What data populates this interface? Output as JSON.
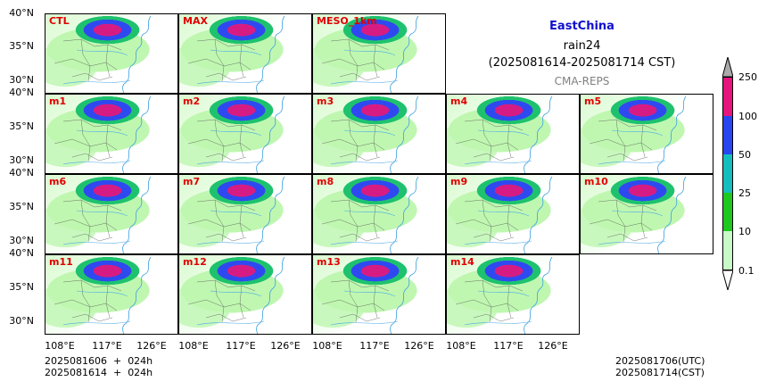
{
  "info": {
    "region": "EastChina",
    "variable": "rain24",
    "period": "(2025081614-2025081714 CST)",
    "model": "CMA-REPS",
    "region_color": "#1010d0",
    "model_color": "#808080"
  },
  "panels": [
    {
      "id": "ctl",
      "label": "CTL"
    },
    {
      "id": "max",
      "label": "MAX"
    },
    {
      "id": "meso",
      "label": "MESO_1km"
    },
    {
      "id": "m1",
      "label": "m1"
    },
    {
      "id": "m2",
      "label": "m2"
    },
    {
      "id": "m3",
      "label": "m3"
    },
    {
      "id": "m4",
      "label": "m4"
    },
    {
      "id": "m5",
      "label": "m5"
    },
    {
      "id": "m6",
      "label": "m6"
    },
    {
      "id": "m7",
      "label": "m7"
    },
    {
      "id": "m8",
      "label": "m8"
    },
    {
      "id": "m9",
      "label": "m9"
    },
    {
      "id": "m10",
      "label": "m10"
    },
    {
      "id": "m11",
      "label": "m11"
    },
    {
      "id": "m12",
      "label": "m12"
    },
    {
      "id": "m13",
      "label": "m13"
    },
    {
      "id": "m14",
      "label": "m14"
    }
  ],
  "lat_ticks": [
    "40°N",
    "35°N",
    "30°N"
  ],
  "lon_ticks": [
    "108°E",
    "117°E",
    "126°E"
  ],
  "colorbar": {
    "levels": [
      "0.1",
      "10",
      "25",
      "50",
      "100",
      "250"
    ],
    "colors": [
      "#c8fac8",
      "#1ec81e",
      "#14bebe",
      "#2846f0",
      "#e6147d",
      "#aaaaaa"
    ]
  },
  "footer": {
    "init_utc": "2025081606  +  024h",
    "init_cst": "2025081614  +  024h",
    "valid_utc": "2025081706(UTC)",
    "valid_cst": "2025081714(CST)"
  }
}
